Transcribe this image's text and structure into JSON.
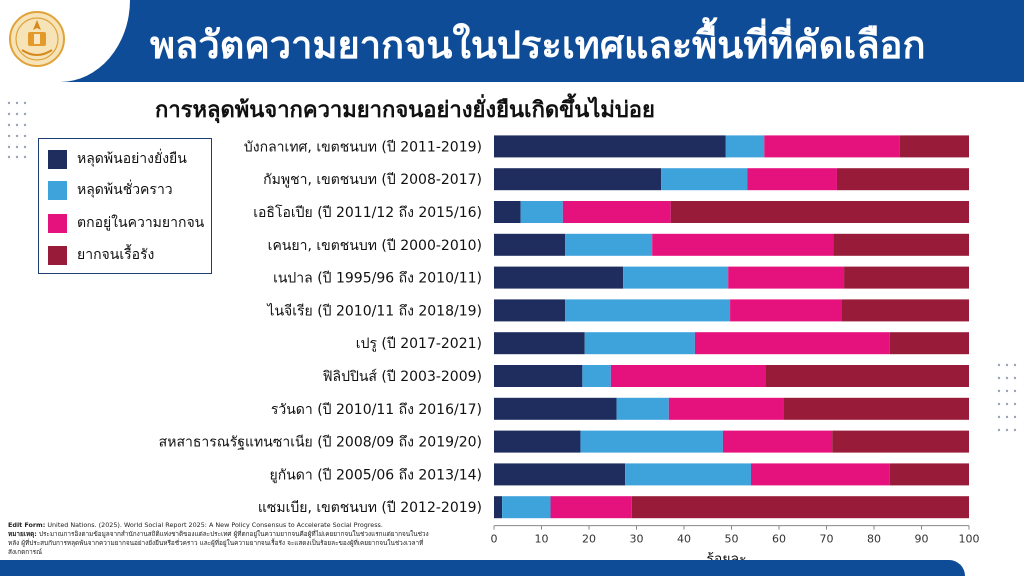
{
  "header": {
    "title": "พลวัตความยากจนในประเทศและพื้นที่ที่คัดเลือก"
  },
  "colors": {
    "header_blue": "#0f4c97",
    "legend_border": "#1d3e75"
  },
  "chart_data": {
    "type": "bar",
    "orientation": "horizontal",
    "stacked": true,
    "title": "การหลุดพ้นจากความยากจนอย่างยั่งยืนเกิดขึ้นไม่บ่อย",
    "xlabel": "ร้อยละ",
    "ylabel": "",
    "xlim": [
      0,
      100
    ],
    "xticks": [
      0,
      10,
      20,
      30,
      40,
      50,
      60,
      70,
      80,
      90,
      100
    ],
    "grid": false,
    "legend_position": "left",
    "categories": [
      "บังกลาเทศ, เขตชนบท (ปี 2011-2019)",
      "กัมพูชา, เขตชนบท (ปี 2008-2017)",
      "เอธิโอเปีย (ปี 2011/12 ถึง 2015/16)",
      "เคนยา, เขตชนบท (ปี 2000-2010)",
      "เนปาล (ปี 1995/96 ถึง 2010/11)",
      "ไนจีเรีย (ปี 2010/11 ถึง 2018/19)",
      "เปรู (ปี 2017-2021)",
      "ฟิลิปปินส์ (ปี 2003-2009)",
      "รวันดา (ปี 2010/11 ถึง 2016/17)",
      "สหสาธารณรัฐแทนซาเนีย (ปี 2008/09 ถึง 2019/20)",
      "ยูกันดา (ปี 2005/06 ถึง 2013/14)",
      "แซมเบีย, เขตชนบท (ปี 2012-2019)"
    ],
    "series": [
      {
        "name": "หลุดพ้นอย่างยั่งยืน",
        "color": "#1f2d5e",
        "values": [
          48.8,
          35.2,
          5.6,
          15.0,
          27.2,
          15.0,
          19.1,
          18.6,
          25.8,
          18.2,
          27.6,
          1.7
        ]
      },
      {
        "name": "หลุดพ้นชั่วคราว",
        "color": "#3ea3db",
        "values": [
          8.1,
          18.1,
          8.9,
          18.3,
          22.1,
          34.7,
          23.2,
          6.0,
          11.0,
          30.0,
          26.5,
          10.2
        ]
      },
      {
        "name": "ตกอยู่ในความยากจน",
        "color": "#e5127e",
        "values": [
          28.5,
          18.9,
          22.7,
          38.1,
          24.4,
          23.4,
          41.0,
          32.5,
          24.1,
          23.0,
          29.2,
          17.1
        ]
      },
      {
        "name": "ยากจนเรื้อรัง",
        "color": "#991b3a",
        "values": [
          14.6,
          27.8,
          62.8,
          28.6,
          26.3,
          26.9,
          16.7,
          42.9,
          39.1,
          28.8,
          16.7,
          71.0
        ]
      }
    ]
  },
  "footnote": {
    "source_label": "Edit Form:",
    "source_text": " United Nations. (2025). World Social Report 2025: A New Policy Consensus to Accelerate Social Progress.",
    "note_label": "หมายเหตุ:",
    "note_text": " ประมาณการอิงตามข้อมูลจากสำนักงานสถิติแห่งชาติของแต่ละประเทศ ผู้ที่ตกอยู่ในความยากจนคือผู้ที่ไม่เคยยากจนในช่วงแรกแต่ยากจนในช่วงหลัง ผู้ที่ประสบกับการหลุดพ้นจากความยากจนอย่างยั่งยืนหรือชั่วคราว และผู้ที่อยู่ในความยากจนเรื้อรัง จะแสดงเป็นร้อยละของผู้ที่เคยยากจนในช่วงเวลาที่สังเกตการณ์"
  }
}
